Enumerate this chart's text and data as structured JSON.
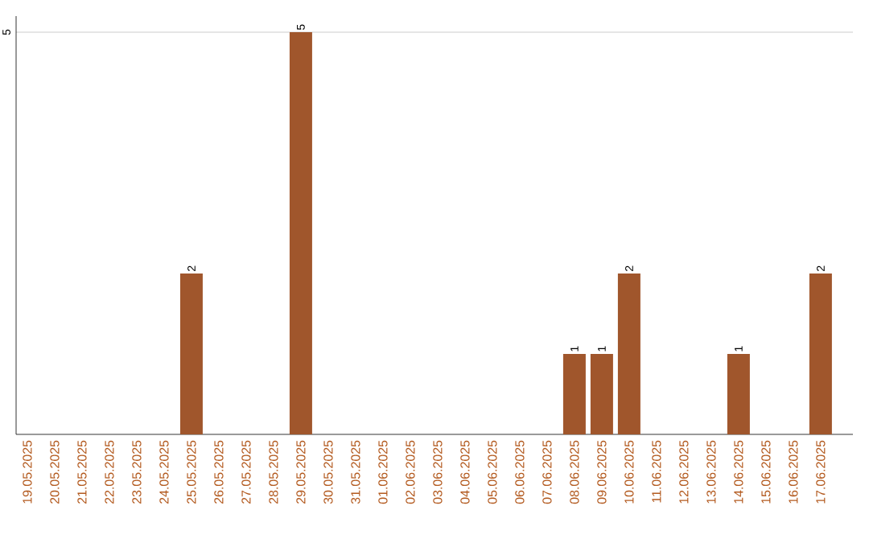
{
  "chart_data": {
    "type": "bar",
    "categories": [
      "19.05.2025",
      "20.05.2025",
      "21.05.2025",
      "22.05.2025",
      "23.05.2025",
      "24.05.2025",
      "25.05.2025",
      "26.05.2025",
      "27.05.2025",
      "28.05.2025",
      "29.05.2025",
      "30.05.2025",
      "31.05.2025",
      "01.06.2025",
      "02.06.2025",
      "03.06.2025",
      "04.06.2025",
      "05.06.2025",
      "06.06.2025",
      "07.06.2025",
      "08.06.2025",
      "09.06.2025",
      "10.06.2025",
      "11.06.2025",
      "12.06.2025",
      "13.06.2025",
      "14.06.2025",
      "15.06.2025",
      "16.06.2025",
      "17.06.2025"
    ],
    "values": [
      0,
      0,
      0,
      0,
      0,
      0,
      2,
      0,
      0,
      0,
      5,
      0,
      0,
      0,
      0,
      0,
      0,
      0,
      0,
      0,
      1,
      1,
      2,
      0,
      0,
      0,
      1,
      0,
      0,
      2
    ],
    "value_labels": [
      null,
      null,
      null,
      null,
      null,
      null,
      "2",
      null,
      null,
      null,
      "5",
      null,
      null,
      null,
      null,
      null,
      null,
      null,
      null,
      null,
      "1",
      "1",
      "2",
      null,
      null,
      null,
      "1",
      null,
      null,
      "2"
    ],
    "color": "#a0562c",
    "ylim": [
      0,
      5.2
    ],
    "yticks": [
      5
    ],
    "grid": "y"
  }
}
